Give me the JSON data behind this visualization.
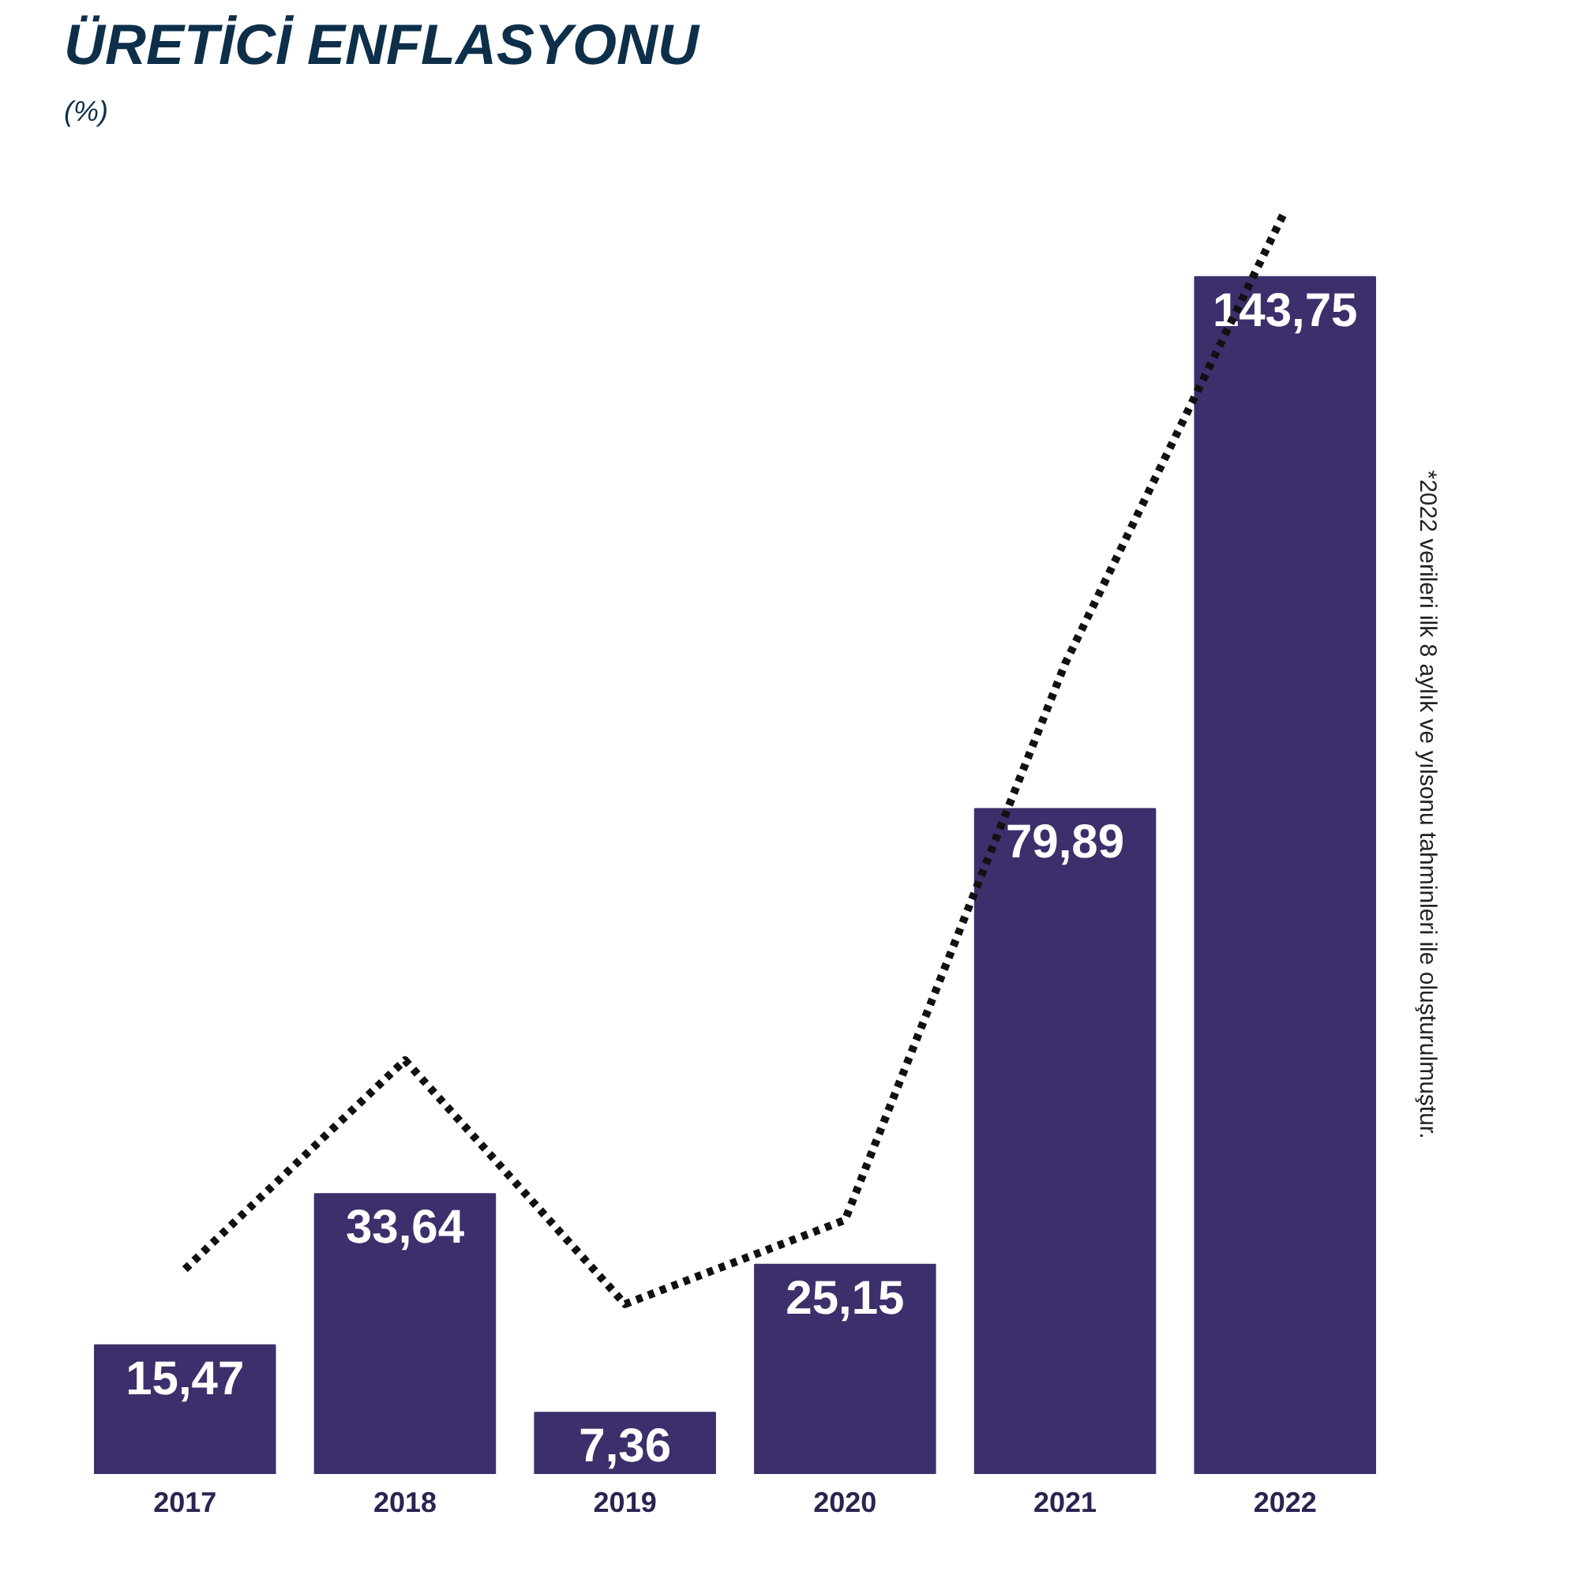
{
  "chart_data": {
    "type": "bar",
    "title": "ÜRETİCİ ENFLASYONU",
    "subtitle": "(%)",
    "categories": [
      "2017",
      "2018",
      "2019",
      "2020",
      "2021",
      "2022"
    ],
    "series": [
      {
        "color": "#3d2f6b",
        "values": [
          15.47,
          33.64,
          7.36,
          25.15,
          79.89,
          143.75
        ],
        "value_labels": [
          "15,47",
          "33,64",
          "7,36",
          "25,15",
          "79,89",
          "143,75"
        ]
      },
      {
        "type": "line",
        "color": "#111111",
        "line_style": "dotted",
        "values": [
          24.6,
          49.7,
          20.4,
          30.5,
          97.3,
          151.7
        ]
      }
    ],
    "annotations": [
      "*2022 verileri ilk 8 aylık ve yılsonu tahminleri ile oluşturulmuştur."
    ]
  }
}
